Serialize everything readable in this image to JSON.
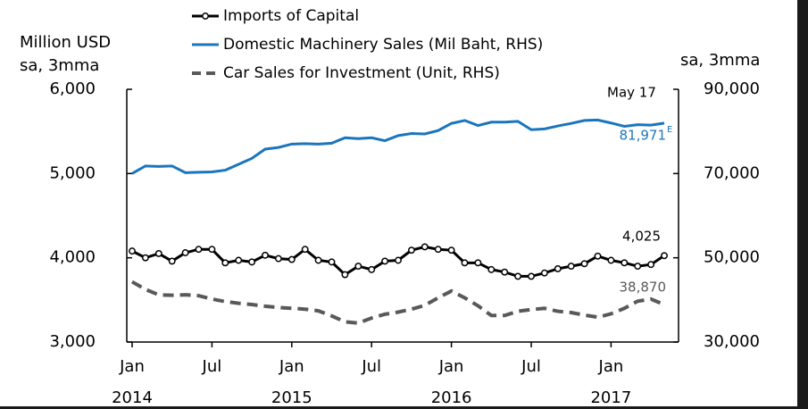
{
  "chart_data": {
    "type": "line",
    "y_axis_title": [
      "Million USD",
      "sa, 3mma"
    ],
    "y2_axis_title": "sa, 3mma",
    "annotation": "May 17",
    "categories": [
      "Jan",
      null,
      null,
      null,
      null,
      null,
      "Jul",
      null,
      null,
      null,
      null,
      null,
      "Jan",
      null,
      null,
      null,
      null,
      null,
      "Jul",
      null,
      null,
      null,
      null,
      null,
      "Jan",
      null,
      null,
      null,
      null,
      null,
      "Jul",
      null,
      null,
      null,
      null,
      null,
      "Jan",
      null,
      null,
      null,
      null
    ],
    "year_categories": [
      "2014",
      null,
      null,
      null,
      null,
      null,
      null,
      null,
      null,
      null,
      null,
      null,
      "2015",
      null,
      null,
      null,
      null,
      null,
      null,
      null,
      null,
      null,
      null,
      null,
      "2016",
      null,
      null,
      null,
      null,
      null,
      null,
      null,
      null,
      null,
      null,
      null,
      "2017",
      null,
      null,
      null,
      null
    ],
    "ylim": [
      3000,
      6000
    ],
    "yticks": [
      {
        "value": 3000,
        "label": "3,000"
      },
      {
        "value": 4000,
        "label": "4,000"
      },
      {
        "value": 5000,
        "label": "5,000"
      },
      {
        "value": 6000,
        "label": "6,000"
      }
    ],
    "y2lim": [
      30000,
      90000
    ],
    "y2ticks": [
      {
        "value": 30000,
        "label": "30,000"
      },
      {
        "value": 50000,
        "label": "50,000"
      },
      {
        "value": 70000,
        "label": "70,000"
      },
      {
        "value": 90000,
        "label": "90,000"
      }
    ],
    "series": [
      {
        "name": "Imports of Capital",
        "color": "#000000",
        "marker": "circle",
        "values": [
          4080,
          4000,
          4050,
          3960,
          4060,
          4100,
          4100,
          3940,
          3970,
          3950,
          4030,
          3990,
          3980,
          4100,
          3970,
          3950,
          3800,
          3900,
          3860,
          3960,
          3970,
          4090,
          4130,
          4100,
          4090,
          3940,
          3940,
          3860,
          3830,
          3780,
          3780,
          3820,
          3870,
          3900,
          3930,
          4020,
          3970,
          3940,
          3900,
          3920,
          4025
        ],
        "value_labels": [
          null,
          null,
          null,
          null,
          null,
          null,
          null,
          null,
          null,
          null,
          null,
          null,
          null,
          null,
          null,
          null,
          null,
          null,
          null,
          null,
          null,
          null,
          null,
          null,
          null,
          null,
          null,
          null,
          null,
          null,
          null,
          null,
          null,
          null,
          null,
          null,
          null,
          null,
          null,
          null,
          "4,025"
        ]
      },
      {
        "name": "Domestic Machinery Sales (Mil Baht, RHS)",
        "color": "#1b75bc",
        "axis": "y2",
        "values": [
          70000,
          71800,
          71700,
          71800,
          70200,
          70300,
          70400,
          70800,
          72200,
          73600,
          75800,
          76200,
          77000,
          77100,
          77000,
          77200,
          78500,
          78300,
          78500,
          77800,
          79000,
          79500,
          79400,
          80200,
          81900,
          82600,
          81400,
          82200,
          82200,
          82400,
          80400,
          80600,
          81300,
          81900,
          82600,
          82700,
          82000,
          81200,
          81600,
          81500,
          81971
        ],
        "value_labels": [
          null,
          null,
          null,
          null,
          null,
          null,
          null,
          null,
          null,
          null,
          null,
          null,
          null,
          null,
          null,
          null,
          null,
          null,
          null,
          null,
          null,
          null,
          null,
          null,
          null,
          null,
          null,
          null,
          null,
          null,
          null,
          null,
          null,
          null,
          null,
          null,
          null,
          null,
          null,
          null,
          "81,971"
        ],
        "value_label_note": "E"
      },
      {
        "name": "Car Sales for Investment (Unit, RHS)",
        "color": "#595959",
        "axis": "y2",
        "dash": true,
        "values": [
          44300,
          42500,
          41200,
          41100,
          41200,
          41000,
          40200,
          39600,
          39200,
          38900,
          38500,
          38200,
          38000,
          37800,
          37400,
          36200,
          34800,
          34500,
          35700,
          36600,
          37100,
          37800,
          38700,
          40500,
          42100,
          40500,
          38600,
          36300,
          36300,
          37300,
          37700,
          38000,
          37300,
          37000,
          36400,
          35900,
          36700,
          38000,
          39700,
          40200,
          38870
        ],
        "value_labels": [
          null,
          null,
          null,
          null,
          null,
          null,
          null,
          null,
          null,
          null,
          null,
          null,
          null,
          null,
          null,
          null,
          null,
          null,
          null,
          null,
          null,
          null,
          null,
          null,
          null,
          null,
          null,
          null,
          null,
          null,
          null,
          null,
          null,
          null,
          null,
          null,
          null,
          null,
          null,
          null,
          "38,870"
        ]
      }
    ]
  }
}
